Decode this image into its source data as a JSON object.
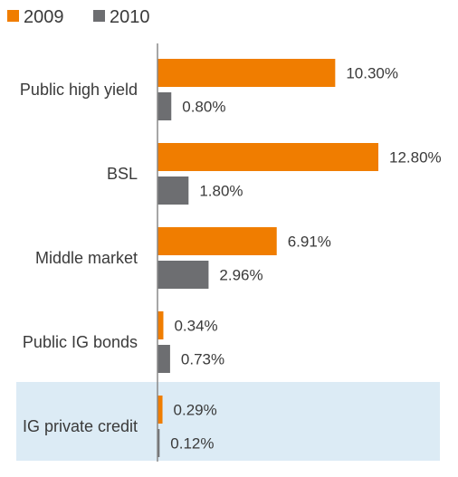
{
  "chart_data": {
    "type": "bar",
    "orientation": "horizontal",
    "categories": [
      "Public high yield",
      "BSL",
      "Middle market",
      "Public IG bonds",
      "IG private credit"
    ],
    "series": [
      {
        "name": "2009",
        "color": "#f07d00",
        "values": [
          10.3,
          12.8,
          6.91,
          0.34,
          0.29
        ],
        "labels": [
          "10.30%",
          "12.80%",
          "6.91%",
          "0.34%",
          "0.29%"
        ]
      },
      {
        "name": "2010",
        "color": "#6d6e71",
        "values": [
          0.8,
          1.8,
          2.96,
          0.73,
          0.12
        ],
        "labels": [
          "0.80%",
          "1.80%",
          "2.96%",
          "0.73%",
          "0.12%"
        ]
      }
    ],
    "xlim": [
      0,
      13.5
    ],
    "highlight_category": "IG private credit",
    "highlight_color": "#dcebf5",
    "legend_position": "top-left",
    "grid": false
  }
}
